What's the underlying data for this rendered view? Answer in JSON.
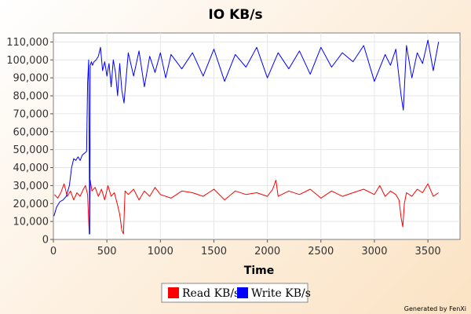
{
  "chart_data": {
    "type": "line",
    "title": "IO KB/s",
    "xlabel": "Time",
    "ylabel": "",
    "xlim": [
      0,
      3800
    ],
    "ylim": [
      0,
      115000
    ],
    "x_ticks": [
      0,
      500,
      1000,
      1500,
      2000,
      2500,
      3000,
      3500
    ],
    "y_ticks": [
      0,
      10000,
      20000,
      30000,
      40000,
      50000,
      60000,
      70000,
      80000,
      90000,
      100000,
      110000
    ],
    "x_tick_labels": [
      "0",
      "500",
      "1000",
      "1500",
      "2000",
      "2500",
      "3000",
      "3500"
    ],
    "y_tick_labels": [
      "0",
      "10,000",
      "20,000",
      "30,000",
      "40,000",
      "50,000",
      "60,000",
      "70,000",
      "80,000",
      "90,000",
      "100,000",
      "110,000"
    ],
    "grid": true,
    "legend_position": "bottom",
    "series": [
      {
        "name": "Read KB/s",
        "color": "#ff0000",
        "x": [
          10,
          40,
          70,
          100,
          130,
          160,
          190,
          220,
          250,
          280,
          300,
          320,
          335,
          345,
          360,
          390,
          420,
          450,
          480,
          510,
          540,
          570,
          600,
          620,
          640,
          655,
          670,
          700,
          750,
          800,
          850,
          900,
          950,
          1000,
          1100,
          1200,
          1300,
          1400,
          1500,
          1600,
          1700,
          1800,
          1900,
          2000,
          2050,
          2080,
          2100,
          2200,
          2300,
          2400,
          2500,
          2600,
          2700,
          2800,
          2900,
          3000,
          3050,
          3100,
          3150,
          3200,
          3230,
          3250,
          3265,
          3280,
          3300,
          3350,
          3400,
          3450,
          3500,
          3550,
          3600
        ],
        "y": [
          25000,
          23000,
          26000,
          31000,
          24000,
          27000,
          22000,
          26000,
          24000,
          28000,
          30000,
          25000,
          3000,
          33000,
          27000,
          29000,
          24000,
          28000,
          22000,
          30000,
          24000,
          26000,
          19000,
          14000,
          5000,
          3000,
          27000,
          25000,
          28000,
          22000,
          27000,
          24000,
          29000,
          25000,
          23000,
          27000,
          26000,
          24000,
          28000,
          22000,
          27000,
          25000,
          26000,
          24000,
          28000,
          33000,
          24000,
          27000,
          25000,
          28000,
          23000,
          27000,
          24000,
          26000,
          28000,
          25000,
          30000,
          24000,
          27000,
          25000,
          22000,
          12000,
          7000,
          20000,
          26000,
          24000,
          28000,
          26000,
          31000,
          24000,
          26000
        ]
      },
      {
        "name": "Write KB/s",
        "color": "#0000ff",
        "x": [
          5,
          30,
          60,
          90,
          120,
          150,
          170,
          190,
          210,
          230,
          250,
          270,
          290,
          310,
          320,
          330,
          340,
          345,
          355,
          365,
          380,
          400,
          420,
          440,
          460,
          480,
          500,
          520,
          540,
          560,
          580,
          600,
          620,
          640,
          660,
          700,
          750,
          800,
          850,
          900,
          950,
          1000,
          1050,
          1100,
          1200,
          1300,
          1400,
          1500,
          1600,
          1700,
          1800,
          1900,
          2000,
          2100,
          2200,
          2300,
          2400,
          2500,
          2600,
          2700,
          2800,
          2900,
          3000,
          3100,
          3150,
          3200,
          3250,
          3270,
          3300,
          3350,
          3400,
          3450,
          3500,
          3550,
          3600
        ],
        "y": [
          13000,
          18000,
          21000,
          22000,
          24000,
          30000,
          40000,
          45000,
          44000,
          46000,
          44000,
          47000,
          48000,
          49000,
          87000,
          100000,
          3000,
          97000,
          99000,
          97000,
          99000,
          100000,
          102000,
          107000,
          94000,
          99000,
          91000,
          98000,
          85000,
          100000,
          93000,
          80000,
          98000,
          83000,
          76000,
          104000,
          91000,
          105000,
          85000,
          102000,
          93000,
          104000,
          90000,
          103000,
          95000,
          104000,
          91000,
          106000,
          88000,
          103000,
          96000,
          107000,
          90000,
          104000,
          95000,
          105000,
          92000,
          107000,
          96000,
          104000,
          99000,
          108000,
          88000,
          103000,
          97000,
          106000,
          80000,
          72000,
          108000,
          90000,
          104000,
          98000,
          111000,
          94000,
          110000
        ]
      }
    ]
  },
  "legend": [
    {
      "label": "Read KB/s",
      "color": "#ff0000"
    },
    {
      "label": "Write KB/s",
      "color": "#0000ff"
    }
  ],
  "footer_text": "Generated by FenXi"
}
